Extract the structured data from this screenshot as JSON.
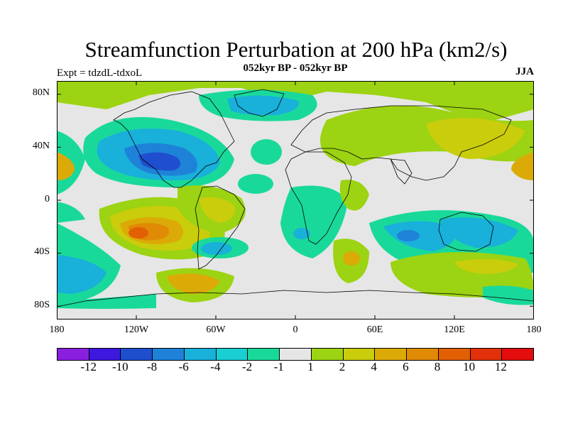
{
  "title": "Streamfunction Perturbation at 200 hPa (km2/s)",
  "subtitle": "052kyr BP - 052kyr BP",
  "left_note": "Expt = tdzdL-tdxoL",
  "right_note": "JJA",
  "lat_ticks": [
    "80N",
    "40N",
    "0",
    "40S",
    "80S"
  ],
  "lon_ticks": [
    "180",
    "120W",
    "60W",
    "0",
    "60E",
    "120E",
    "180"
  ],
  "colorbar": {
    "colors": [
      "#8a1fe0",
      "#3d19e0",
      "#1f4ecf",
      "#1e82d8",
      "#19b0da",
      "#19cfd3",
      "#19d99a",
      "#e6e6e6",
      "#9cd312",
      "#c9cd0b",
      "#dcaa07",
      "#e08a05",
      "#e25f04",
      "#e2300a",
      "#e30d0d"
    ],
    "labels": [
      "-12",
      "-10",
      "-8",
      "-6",
      "-4",
      "-2",
      "-1",
      "1",
      "2",
      "4",
      "6",
      "8",
      "10",
      "12"
    ]
  },
  "chart_data": {
    "type": "heatmap",
    "variable": "Streamfunction Perturbation",
    "level": "200 hPa",
    "units": "km2/s",
    "season": "JJA",
    "experiment": "tdzdL-tdxoL",
    "lon_range": [
      -180,
      180
    ],
    "lat_range": [
      -90,
      90
    ],
    "levels": [
      -12,
      -10,
      -8,
      -6,
      -4,
      -2,
      -1,
      1,
      2,
      4,
      6,
      8,
      10,
      12
    ],
    "features": [
      {
        "lon": -100,
        "lat": 30,
        "value": -8
      },
      {
        "lon": -120,
        "lat": -27,
        "value": 10
      },
      {
        "lon": -160,
        "lat": -50,
        "value": -6
      },
      {
        "lon": 120,
        "lat": -30,
        "value": -6
      },
      {
        "lon": 30,
        "lat": -35,
        "value": 4
      },
      {
        "lon": 175,
        "lat": 25,
        "value": 6
      },
      {
        "lon": -175,
        "lat": 25,
        "value": 6
      }
    ]
  }
}
